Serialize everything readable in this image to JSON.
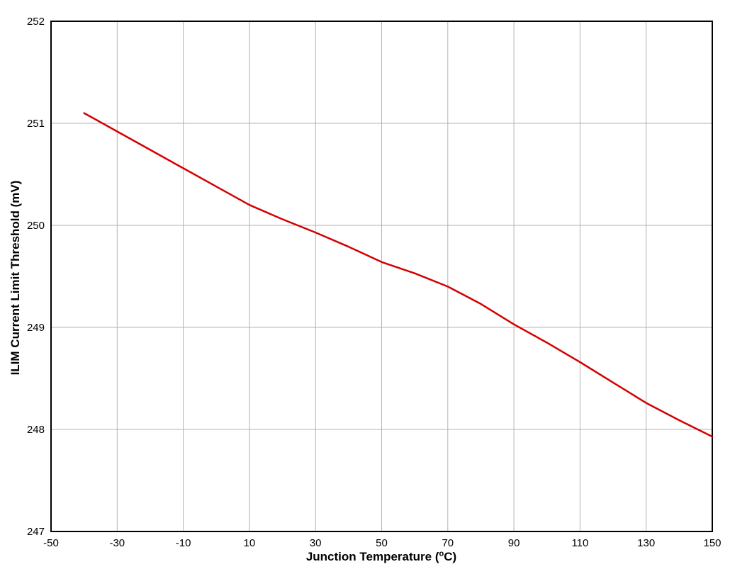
{
  "chart_data": {
    "type": "line",
    "xlabel": "Junction Temperature (°C)",
    "xlabel_parts": {
      "pre": "Junction Temperature (",
      "sup": "o",
      "post": "C)"
    },
    "ylabel": "ILIM Current Limit Threshold (mV)",
    "xlim": [
      -50,
      150
    ],
    "ylim": [
      247,
      252
    ],
    "xticks": [
      -50,
      -30,
      -10,
      10,
      30,
      50,
      70,
      90,
      110,
      130,
      150
    ],
    "yticks": [
      247,
      248,
      249,
      250,
      251,
      252
    ],
    "grid": true,
    "grid_color": "#b3b3b3",
    "border_color": "#000000",
    "legend": "none",
    "series": [
      {
        "name": "ILIM current limit threshold",
        "color": "#d40000",
        "x": [
          -40,
          -30,
          -20,
          -10,
          0,
          10,
          20,
          30,
          40,
          50,
          60,
          70,
          80,
          90,
          100,
          110,
          120,
          130,
          140,
          150
        ],
        "y": [
          251.1,
          250.92,
          250.74,
          250.56,
          250.38,
          250.2,
          250.06,
          249.93,
          249.79,
          249.64,
          249.53,
          249.4,
          249.23,
          249.03,
          248.85,
          248.66,
          248.46,
          248.26,
          248.09,
          247.93
        ]
      }
    ]
  }
}
